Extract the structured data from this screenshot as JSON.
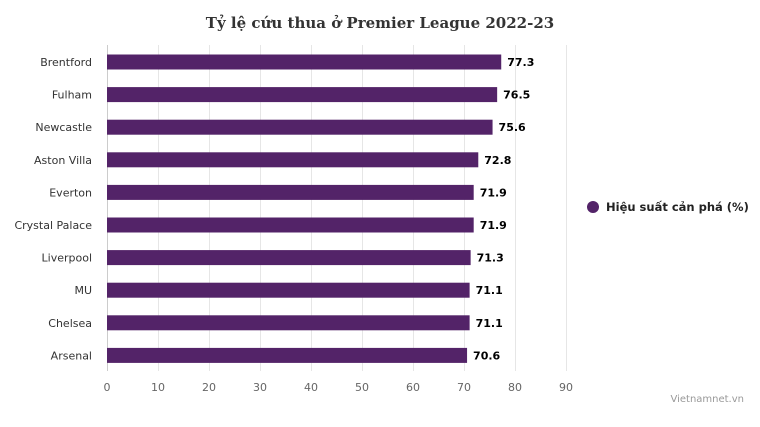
{
  "chart_data": {
    "type": "bar",
    "orientation": "horizontal",
    "title": "Tỷ lệ cứu thua ở Premier League 2022-23",
    "categories": [
      "Brentford",
      "Fulham",
      "Newcastle",
      "Aston Villa",
      "Everton",
      "Crystal Palace",
      "Liverpool",
      "MU",
      "Chelsea",
      "Arsenal"
    ],
    "series": [
      {
        "name": "Hiệu suất cản phá (%)",
        "values": [
          77.3,
          76.5,
          75.6,
          72.8,
          71.9,
          71.9,
          71.3,
          71.1,
          71.1,
          70.6
        ],
        "labels": [
          "77.3",
          "76.5",
          "75.6",
          "72.8",
          "71.9",
          "71.9",
          "71.3",
          "71.1",
          "71.1",
          "70.6"
        ],
        "color": "#532368"
      }
    ],
    "xlim": [
      0,
      90
    ],
    "xticks": [
      0,
      10,
      20,
      30,
      40,
      50,
      60,
      70,
      80,
      90
    ],
    "xlabel": "",
    "ylabel": "",
    "grid": true,
    "legend_position": "right"
  },
  "credit": "Vietnamnet.vn"
}
